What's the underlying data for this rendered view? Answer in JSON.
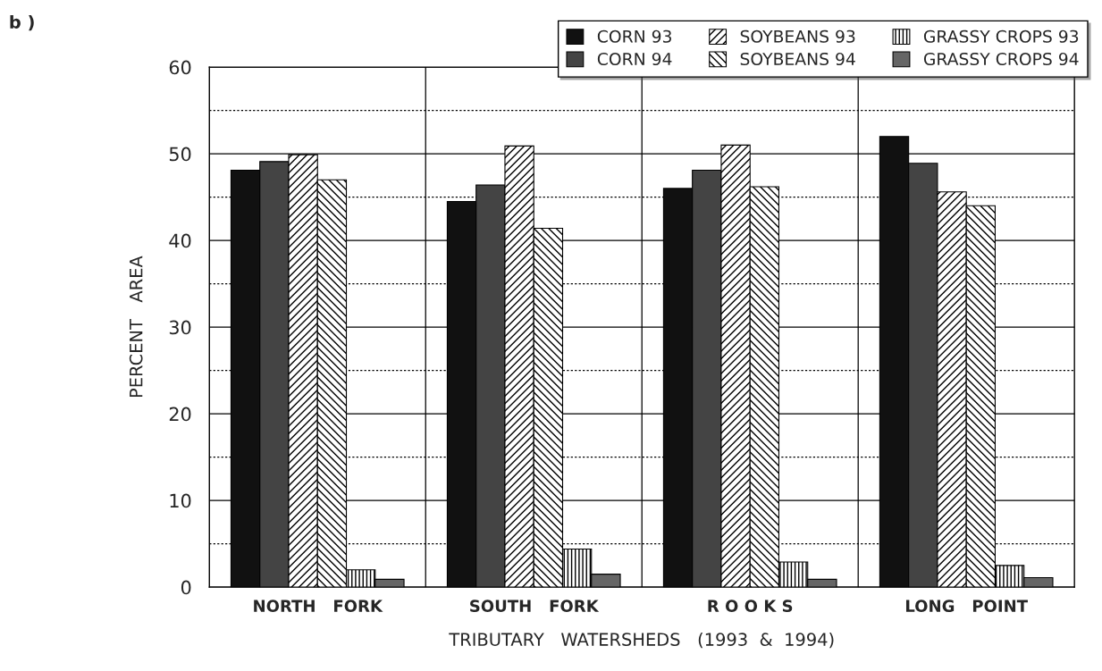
{
  "chart_data": {
    "type": "bar",
    "xlabel": "TRIBUTARY   WATERSHEDS   (1993  &  1994)",
    "ylabel": "PERCENT   AREA",
    "categories": [
      "NORTH   FORK",
      "SOUTH   FORK",
      "R O O K S",
      "LONG   POINT"
    ],
    "series": [
      {
        "name": "CORN 93",
        "color": "#111111",
        "values": [
          48.1,
          44.5,
          46.0,
          52.0
        ]
      },
      {
        "name": "CORN 94",
        "color": "#444444",
        "values": [
          49.1,
          46.4,
          48.1,
          48.9
        ]
      },
      {
        "name": "SOYBEANS 93",
        "color": "#000000",
        "values": [
          49.9,
          50.9,
          51.0,
          45.6
        ]
      },
      {
        "name": "SOYBEANS 94",
        "color": "#000000",
        "values": [
          47.0,
          41.4,
          46.2,
          44.0
        ]
      },
      {
        "name": "GRASSY CROPS 93",
        "color": "#000000",
        "values": [
          2.0,
          4.4,
          2.9,
          2.5
        ]
      },
      {
        "name": "GRASSY CROPS 94",
        "color": "#666666",
        "values": [
          0.9,
          1.5,
          0.9,
          1.1
        ]
      }
    ],
    "ylim": [
      0,
      60
    ],
    "yticks": [
      0,
      {
        "value": 5,
        "label": null
      },
      10,
      {
        "value": 15,
        "label": null
      },
      20,
      {
        "value": 25,
        "label": null
      },
      30,
      {
        "value": 35,
        "label": null
      },
      40,
      {
        "value": 45,
        "label": null
      },
      50,
      {
        "value": 55,
        "label": null
      },
      60
    ],
    "grid": true,
    "legend": "top right",
    "annotations": [
      "b )"
    ]
  }
}
